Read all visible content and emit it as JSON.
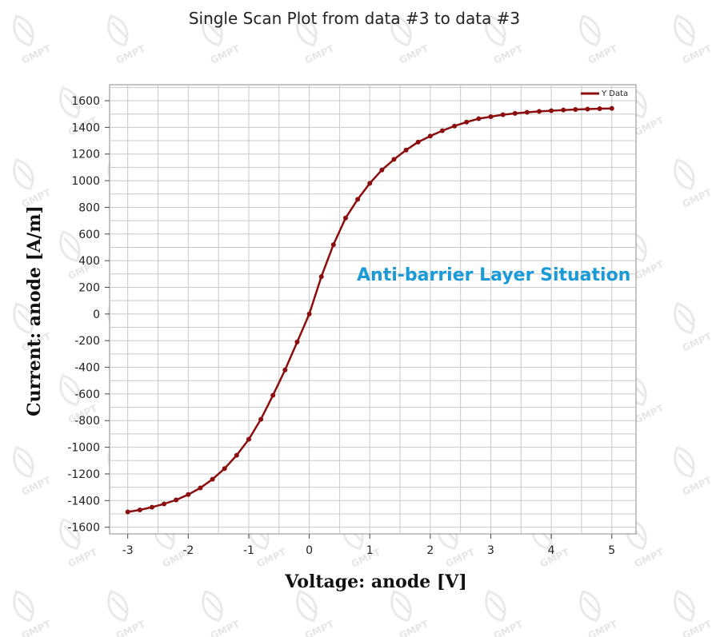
{
  "chart_data": {
    "type": "line",
    "title": "Single Scan Plot from data #3 to data #3",
    "xlabel": "Voltage: anode [V]",
    "ylabel": "Current: anode [A/m]",
    "xlim": [
      -3.3,
      5.4
    ],
    "ylim": [
      -1650,
      1720
    ],
    "xticks": [
      -3,
      -2,
      -1,
      0,
      1,
      2,
      3,
      4,
      5
    ],
    "yticks": [
      -1600,
      -1400,
      -1200,
      -1000,
      -800,
      -600,
      -400,
      -200,
      0,
      200,
      400,
      600,
      800,
      1000,
      1200,
      1400,
      1600
    ],
    "grid": true,
    "legend_position": "top-right",
    "annotation": "Anti-barrier Layer Situation",
    "watermark_text": "GMPT",
    "colors": {
      "series": "#8b0d0d",
      "annotation": "#1a9ad6",
      "grid": "#c8c8c8"
    },
    "series": [
      {
        "name": "Y Data",
        "marker": "circle",
        "x": [
          -3.0,
          -2.8,
          -2.6,
          -2.4,
          -2.2,
          -2.0,
          -1.8,
          -1.6,
          -1.4,
          -1.2,
          -1.0,
          -0.8,
          -0.6,
          -0.4,
          -0.2,
          0.0,
          0.2,
          0.4,
          0.6,
          0.8,
          1.0,
          1.2,
          1.4,
          1.6,
          1.8,
          2.0,
          2.2,
          2.4,
          2.6,
          2.8,
          3.0,
          3.2,
          3.4,
          3.6,
          3.8,
          4.0,
          4.2,
          4.4,
          4.6,
          4.8,
          5.0
        ],
        "y": [
          -1485,
          -1470,
          -1450,
          -1425,
          -1395,
          -1355,
          -1305,
          -1240,
          -1160,
          -1060,
          -940,
          -790,
          -610,
          -420,
          -210,
          0,
          280,
          520,
          720,
          860,
          980,
          1080,
          1160,
          1230,
          1290,
          1335,
          1375,
          1410,
          1440,
          1465,
          1480,
          1495,
          1505,
          1513,
          1520,
          1525,
          1530,
          1534,
          1537,
          1540,
          1542
        ]
      }
    ]
  }
}
